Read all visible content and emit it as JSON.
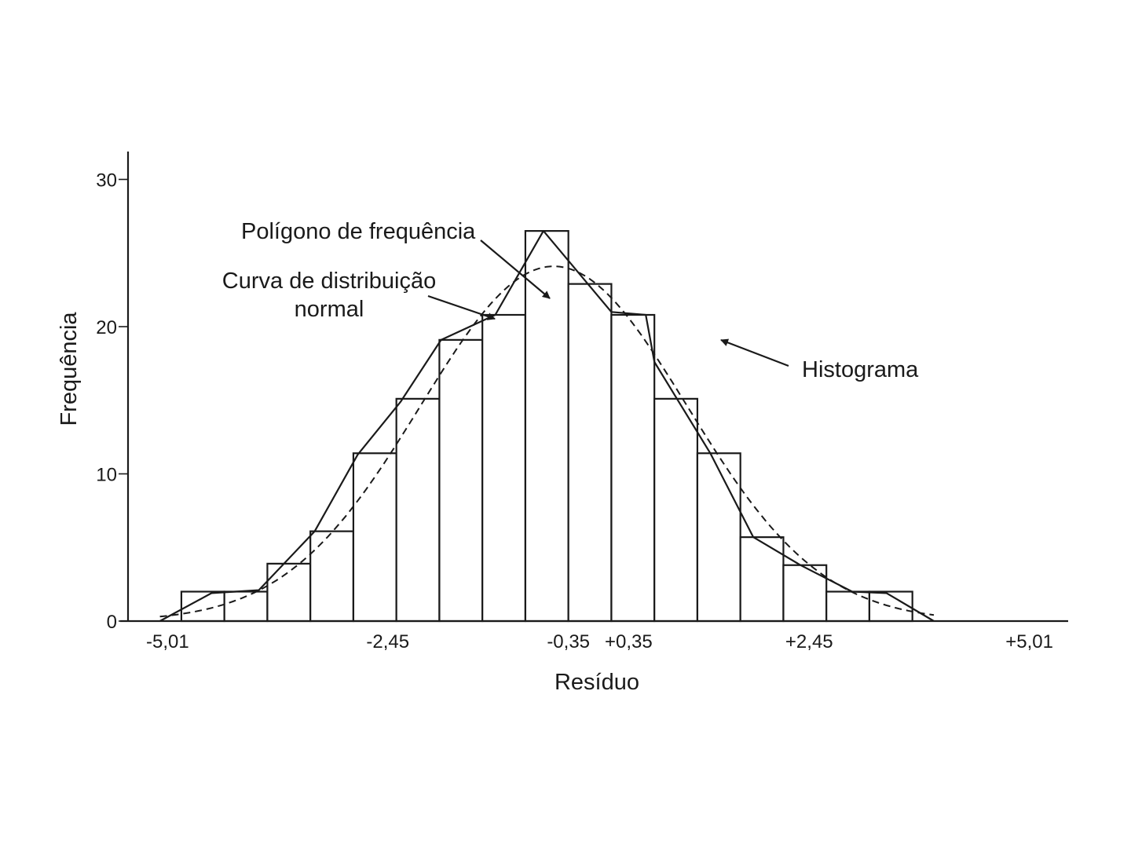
{
  "chart_data": {
    "type": "bar",
    "title": "",
    "xlabel": "Resíduo",
    "ylabel": "Frequência",
    "ylim": [
      0,
      30
    ],
    "y_ticks": [
      "0",
      "10",
      "20",
      "30"
    ],
    "x_tick_labels": [
      {
        "label": "-5,01",
        "x": -5.01
      },
      {
        "label": "-2,45",
        "x": -2.45
      },
      {
        "label": "-0,35",
        "x": -0.35
      },
      {
        "label": "+0,35",
        "x": 0.35
      },
      {
        "label": "+2,45",
        "x": 2.45
      },
      {
        "label": "+5,01",
        "x": 5.01
      }
    ],
    "bins": [
      {
        "from": -4.85,
        "to": -4.35,
        "value": 2
      },
      {
        "from": -4.35,
        "to": -3.85,
        "value": 2
      },
      {
        "from": -3.85,
        "to": -3.35,
        "value": 3.9
      },
      {
        "from": -3.35,
        "to": -2.85,
        "value": 6.1
      },
      {
        "from": -2.85,
        "to": -2.35,
        "value": 11.4
      },
      {
        "from": -2.35,
        "to": -1.85,
        "value": 15.1
      },
      {
        "from": -1.85,
        "to": -1.35,
        "value": 19.1
      },
      {
        "from": -1.35,
        "to": -0.85,
        "value": 20.8
      },
      {
        "from": -0.85,
        "to": -0.35,
        "value": 26.5
      },
      {
        "from": -0.35,
        "to": 0.15,
        "value": 22.9
      },
      {
        "from": 0.15,
        "to": 0.65,
        "value": 20.8
      },
      {
        "from": 0.65,
        "to": 1.15,
        "value": 15.1
      },
      {
        "from": 1.15,
        "to": 1.65,
        "value": 11.4
      },
      {
        "from": 1.65,
        "to": 2.15,
        "value": 5.7
      },
      {
        "from": 2.15,
        "to": 2.65,
        "value": 3.8
      },
      {
        "from": 2.65,
        "to": 3.15,
        "value": 2
      },
      {
        "from": 3.15,
        "to": 3.65,
        "value": 2
      }
    ],
    "frequency_polygon": [
      [
        -5.1,
        0
      ],
      [
        -4.5,
        1.9
      ],
      [
        -3.95,
        2.1
      ],
      [
        -3.3,
        6.1
      ],
      [
        -2.8,
        11.3
      ],
      [
        -2.3,
        14.9
      ],
      [
        -1.83,
        19.1
      ],
      [
        -1.2,
        20.8
      ],
      [
        -0.64,
        26.5
      ],
      [
        0.15,
        21.0
      ],
      [
        0.55,
        20.8
      ],
      [
        0.65,
        17.6
      ],
      [
        1.3,
        11.4
      ],
      [
        1.8,
        5.7
      ],
      [
        2.35,
        3.8
      ],
      [
        2.95,
        2.0
      ],
      [
        3.35,
        1.9
      ],
      [
        3.9,
        0
      ]
    ],
    "normal_curve": {
      "mean": -0.52,
      "sd": 1.55,
      "peak": 24.1,
      "from": -5.1,
      "to": 3.9
    },
    "annotations": {
      "polygon": "Polígono de frequência",
      "curve_line1": "Curva de distribuição",
      "curve_line2": "normal",
      "histogram": "Histograma"
    }
  }
}
